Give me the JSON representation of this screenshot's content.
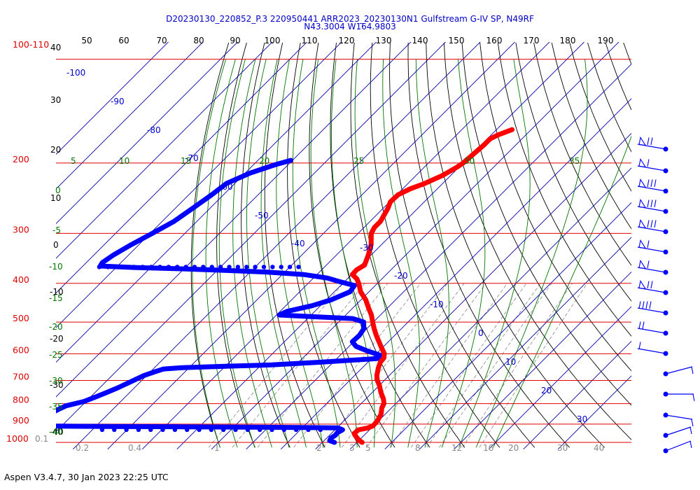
{
  "header": {
    "title_line1": "D20230130_220852_P.3 220950441 ARR2023_20230130N1 Gulfstream G-IV SP, N49RF",
    "title_line2": "N43.3004 W164.9803"
  },
  "footer": {
    "text": "Aspen V3.4.7, 30 Jan 2023  22:25 UTC"
  },
  "colors": {
    "pressure_lines": "#e00000",
    "temperature_trace": "#ff0000",
    "dewpoint_trace": "#0000ff",
    "isotherms": "#0000aa",
    "dry_adiabats": "#000000",
    "moist_adiabats": "#007700",
    "mixing_ratio": "#888888"
  },
  "chart_data": {
    "type": "skew-t",
    "pressure_labels": [
      {
        "label": "100-110",
        "p": 110
      },
      {
        "label": "200",
        "p": 200
      },
      {
        "label": "300",
        "p": 300
      },
      {
        "label": "400",
        "p": 400
      },
      {
        "label": "500",
        "p": 500
      },
      {
        "label": "600",
        "p": 600
      },
      {
        "label": "700",
        "p": 700
      },
      {
        "label": "800",
        "p": 800
      },
      {
        "label": "900",
        "p": 900
      },
      {
        "label": "1000",
        "p": 1000
      }
    ],
    "top_scale": [
      "50",
      "60",
      "70",
      "80",
      "90",
      "100",
      "110",
      "120",
      "130",
      "140",
      "150",
      "160",
      "170",
      "180",
      "190"
    ],
    "left_height_labels": [
      "40",
      "30",
      "20",
      "10",
      "0",
      "-10",
      "-20",
      "-30",
      "-40"
    ],
    "isotherm_labels": [
      "-100",
      "-90",
      "-80",
      "-70",
      "-60",
      "-50",
      "-40",
      "-30",
      "-20",
      "-10",
      "0",
      "10",
      "20",
      "30"
    ],
    "moist_adiabat_labels": [
      "5",
      "10",
      "15",
      "20",
      "25",
      "30",
      "35",
      "0",
      "-5",
      "-10",
      "-15",
      "-20",
      "-25",
      "-30",
      "-35",
      "-40"
    ],
    "mixing_ratio_labels": [
      "0.1",
      "0.2",
      "0.4",
      "1",
      "2",
      "3",
      "5",
      "8",
      "12",
      "16",
      "20",
      "30",
      "40"
    ],
    "temperature_profile": [
      {
        "p": 1000,
        "t": 1.5
      },
      {
        "p": 990,
        "t": 0.2
      },
      {
        "p": 975,
        "t": -1.2
      },
      {
        "p": 960,
        "t": -2.6
      },
      {
        "p": 950,
        "t": -3.4
      },
      {
        "p": 930,
        "t": -3.2
      },
      {
        "p": 920,
        "t": -1.0
      },
      {
        "p": 910,
        "t": -0.2
      },
      {
        "p": 900,
        "t": -0.2
      },
      {
        "p": 880,
        "t": -0.4
      },
      {
        "p": 850,
        "t": -1.2
      },
      {
        "p": 820,
        "t": -2.8
      },
      {
        "p": 800,
        "t": -3.4
      },
      {
        "p": 780,
        "t": -4.8
      },
      {
        "p": 750,
        "t": -7.5
      },
      {
        "p": 720,
        "t": -10.0
      },
      {
        "p": 700,
        "t": -12.0
      },
      {
        "p": 680,
        "t": -13.6
      },
      {
        "p": 650,
        "t": -15.4
      },
      {
        "p": 630,
        "t": -16.4
      },
      {
        "p": 615,
        "t": -16.6
      },
      {
        "p": 600,
        "t": -17.7
      },
      {
        "p": 580,
        "t": -20.2
      },
      {
        "p": 560,
        "t": -22.7
      },
      {
        "p": 540,
        "t": -25.3
      },
      {
        "p": 520,
        "t": -27.8
      },
      {
        "p": 500,
        "t": -30.2
      },
      {
        "p": 480,
        "t": -32.6
      },
      {
        "p": 460,
        "t": -35.6
      },
      {
        "p": 440,
        "t": -38.6
      },
      {
        "p": 420,
        "t": -42.4
      },
      {
        "p": 400,
        "t": -45.4
      },
      {
        "p": 390,
        "t": -47.2
      },
      {
        "p": 380,
        "t": -49.8
      },
      {
        "p": 370,
        "t": -49.9
      },
      {
        "p": 360,
        "t": -49.0
      },
      {
        "p": 340,
        "t": -50.8
      },
      {
        "p": 320,
        "t": -53.0
      },
      {
        "p": 300,
        "t": -56.2
      },
      {
        "p": 290,
        "t": -57.0
      },
      {
        "p": 280,
        "t": -57.0
      },
      {
        "p": 260,
        "t": -58.6
      },
      {
        "p": 250,
        "t": -59.8
      },
      {
        "p": 240,
        "t": -59.6
      },
      {
        "p": 232,
        "t": -57.8
      },
      {
        "p": 225,
        "t": -55.2
      },
      {
        "p": 215,
        "t": -52.4
      },
      {
        "p": 205,
        "t": -50.6
      },
      {
        "p": 200,
        "t": -50.0
      },
      {
        "p": 190,
        "t": -49.6
      },
      {
        "p": 180,
        "t": -49.2
      },
      {
        "p": 174,
        "t": -49.2
      },
      {
        "p": 170,
        "t": -48.0
      },
      {
        "p": 165,
        "t": -45.5
      }
    ],
    "dewpoint_profile": [
      {
        "p": 1000,
        "t": -6.5
      },
      {
        "p": 990,
        "t": -8.4
      },
      {
        "p": 975,
        "t": -8.8
      },
      {
        "p": 960,
        "t": -8.3
      },
      {
        "p": 945,
        "t": -8.5
      },
      {
        "p": 930,
        "t": -7.8
      },
      {
        "p": 920,
        "t": -9.7
      },
      {
        "p": 918,
        "t": -20.0
      },
      {
        "p": 916,
        "t": -35.0
      },
      {
        "p": 914,
        "t": -55.0
      },
      {
        "p": 912,
        "t": -78.0
      },
      {
        "p": 910,
        "t": -95.0
      },
      {
        "p": 905,
        "t": -96.5
      },
      {
        "p": 890,
        "t": -97.3
      },
      {
        "p": 870,
        "t": -97.0
      },
      {
        "p": 855,
        "t": -96.5
      },
      {
        "p": 840,
        "t": -96.4
      },
      {
        "p": 825,
        "t": -95.6
      },
      {
        "p": 810,
        "t": -94.5
      },
      {
        "p": 790,
        "t": -90.6
      },
      {
        "p": 770,
        "t": -88.6
      },
      {
        "p": 750,
        "t": -86.7
      },
      {
        "p": 730,
        "t": -84.8
      },
      {
        "p": 700,
        "t": -82.4
      },
      {
        "p": 680,
        "t": -80.8
      },
      {
        "p": 665,
        "t": -78.6
      },
      {
        "p": 655,
        "t": -77.0
      },
      {
        "p": 650,
        "t": -72.0
      },
      {
        "p": 645,
        "t": -60.0
      },
      {
        "p": 640,
        "t": -47.0
      },
      {
        "p": 630,
        "t": -33.6
      },
      {
        "p": 617,
        "t": -18.5
      },
      {
        "p": 612,
        "t": -16.8
      },
      {
        "p": 605,
        "t": -18.5
      },
      {
        "p": 590,
        "t": -23.5
      },
      {
        "p": 575,
        "t": -28.0
      },
      {
        "p": 560,
        "t": -30.4
      },
      {
        "p": 540,
        "t": -30.2
      },
      {
        "p": 520,
        "t": -30.8
      },
      {
        "p": 500,
        "t": -32.8
      },
      {
        "p": 490,
        "t": -37.0
      },
      {
        "p": 485,
        "t": -48.0
      },
      {
        "p": 480,
        "t": -59.2
      },
      {
        "p": 470,
        "t": -58.0
      },
      {
        "p": 455,
        "t": -52.4
      },
      {
        "p": 440,
        "t": -48.6
      },
      {
        "p": 420,
        "t": -45.5
      },
      {
        "p": 405,
        "t": -46.0
      },
      {
        "p": 395,
        "t": -52.0
      },
      {
        "p": 388,
        "t": -56.0
      },
      {
        "p": 380,
        "t": -64.0
      },
      {
        "p": 375,
        "t": -75.0
      },
      {
        "p": 372,
        "t": -85.0
      },
      {
        "p": 368,
        "t": -100.0
      },
      {
        "p": 365,
        "t": -115.0
      },
      {
        "p": 362,
        "t": -125.0
      },
      {
        "p": 355,
        "t": -125.4
      },
      {
        "p": 340,
        "t": -124.4
      },
      {
        "p": 320,
        "t": -122.2
      },
      {
        "p": 300,
        "t": -119.4
      },
      {
        "p": 280,
        "t": -116.6
      },
      {
        "p": 260,
        "t": -115.0
      },
      {
        "p": 240,
        "t": -113.4
      },
      {
        "p": 225,
        "t": -112.4
      },
      {
        "p": 212,
        "t": -108.6
      },
      {
        "p": 202,
        "t": -103.8
      },
      {
        "p": 197,
        "t": -100.5
      }
    ],
    "wind_barbs_upper": [
      {
        "p": 220,
        "barb": "ΔΙΙ"
      },
      {
        "p": 250,
        "barb": "ΔΙ"
      },
      {
        "p": 275,
        "barb": "ΔΙΙΙ"
      },
      {
        "p": 300,
        "barb": "ΔΙΙΙ"
      },
      {
        "p": 330,
        "barb": "ΔΙΙΙ"
      },
      {
        "p": 360,
        "barb": "ΔΙ"
      },
      {
        "p": 395,
        "barb": "ΔΙ"
      },
      {
        "p": 430,
        "barb": "ΔΙΙ"
      },
      {
        "p": 460,
        "barb": "ΙΙΙΙ"
      },
      {
        "p": 500,
        "barb": "ΙΙ"
      },
      {
        "p": 540,
        "barb": "Ι"
      }
    ],
    "xlabel": "",
    "ylabel": "",
    "plim": [
      100,
      1030
    ],
    "tlim": [
      -60,
      40
    ],
    "grid": true
  }
}
